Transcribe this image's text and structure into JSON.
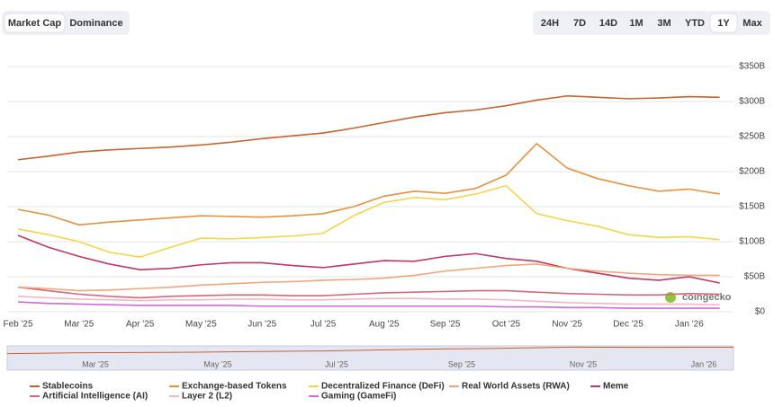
{
  "ui": {
    "tabs": [
      {
        "label": "Market Cap",
        "selected": true
      },
      {
        "label": "Dominance"
      }
    ],
    "ranges": [
      {
        "label": "24H"
      },
      {
        "label": "7D"
      },
      {
        "label": "14D"
      },
      {
        "label": "1M"
      },
      {
        "label": "3M"
      },
      {
        "label": "YTD"
      },
      {
        "label": "1Y",
        "selected": true
      },
      {
        "label": "Max"
      }
    ],
    "watermark": "coingecko"
  },
  "navigator": {
    "labels": [
      "Mar '25",
      "May '25",
      "Jul '25",
      "Sep '25",
      "Nov '25",
      "Jan '26"
    ]
  },
  "chart_data": {
    "type": "line",
    "categories": [
      "Feb '25",
      null,
      "Mar '25",
      null,
      "Apr '25",
      null,
      "May '25",
      null,
      "Jun '25",
      null,
      "Jul '25",
      null,
      "Aug '25",
      null,
      "Sep '25",
      null,
      "Oct '25",
      null,
      "Nov '25",
      null,
      "Dec '25",
      null,
      "Jan '26",
      null
    ],
    "ylim": [
      0,
      350
    ],
    "yticks": [
      {
        "value": 0,
        "label": "$0"
      },
      {
        "value": 50,
        "label": "$50B"
      },
      {
        "value": 100,
        "label": "$100B"
      },
      {
        "value": 150,
        "label": "$150B"
      },
      {
        "value": 200,
        "label": "$200B"
      },
      {
        "value": 250,
        "label": "$250B"
      },
      {
        "value": 300,
        "label": "$300B"
      },
      {
        "value": 350,
        "label": "$350B"
      }
    ],
    "grid": true,
    "series": [
      {
        "name": "Stablecoins",
        "color": "#c8622e",
        "values": [
          217,
          222,
          228,
          231,
          233,
          235,
          238,
          242,
          247,
          251,
          255,
          262,
          270,
          278,
          284,
          288,
          294,
          302,
          308,
          306,
          304,
          305,
          307,
          306
        ]
      },
      {
        "name": "Exchange-based Tokens",
        "color": "#e8913a",
        "values": [
          146,
          138,
          124,
          128,
          131,
          134,
          137,
          136,
          135,
          137,
          140,
          150,
          165,
          172,
          169,
          176,
          195,
          240,
          205,
          190,
          180,
          172,
          175,
          168
        ]
      },
      {
        "name": "Decentralized Finance (DeFi)",
        "color": "#f5d547",
        "values": [
          118,
          110,
          100,
          85,
          78,
          92,
          105,
          104,
          106,
          108,
          112,
          137,
          156,
          163,
          160,
          168,
          180,
          140,
          130,
          122,
          110,
          106,
          107,
          103
        ]
      },
      {
        "name": "Real World Assets (RWA)",
        "color": "#f3a57a",
        "values": [
          35,
          33,
          30,
          31,
          33,
          35,
          38,
          40,
          42,
          43,
          45,
          46,
          48,
          52,
          58,
          62,
          66,
          68,
          62,
          58,
          55,
          53,
          52,
          52
        ]
      },
      {
        "name": "Meme",
        "color": "#c2365f",
        "values": [
          109,
          92,
          79,
          68,
          60,
          62,
          67,
          70,
          70,
          66,
          63,
          68,
          73,
          72,
          79,
          83,
          76,
          72,
          62,
          55,
          48,
          45,
          50,
          41
        ]
      },
      {
        "name": "Artificial Intelligence (AI)",
        "color": "#d9657a",
        "values": [
          35,
          30,
          25,
          22,
          20,
          22,
          23,
          24,
          24,
          23,
          23,
          25,
          27,
          28,
          29,
          30,
          30,
          28,
          26,
          25,
          24,
          24,
          26,
          25
        ]
      },
      {
        "name": "Layer 2 (L2)",
        "color": "#f3b6c2",
        "values": [
          22,
          20,
          18,
          17,
          16,
          17,
          17,
          18,
          18,
          17,
          17,
          18,
          19,
          19,
          18,
          18,
          17,
          15,
          13,
          12,
          11,
          11,
          11,
          10
        ]
      },
      {
        "name": "Gaming (GameFi)",
        "color": "#cf6bd6",
        "values": [
          14,
          12,
          11,
          10,
          9,
          9,
          9,
          9,
          8,
          8,
          8,
          8,
          8,
          8,
          8,
          8,
          7,
          7,
          6,
          6,
          5,
          5,
          5,
          5
        ]
      }
    ]
  }
}
